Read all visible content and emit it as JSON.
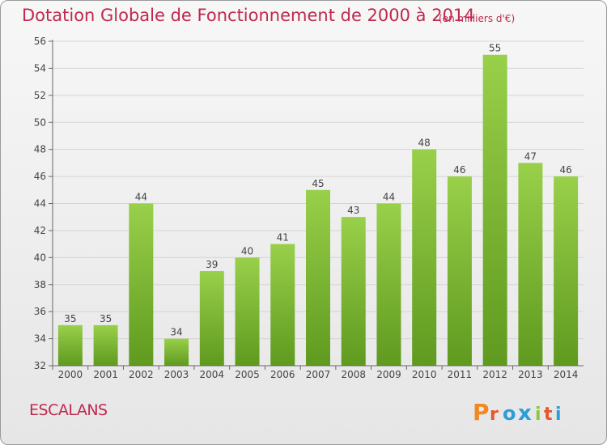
{
  "title": "Dotation Globale de Fonctionnement de 2000 à 2014",
  "unit": "(en milliers d'€)",
  "commune": "ESCALANS",
  "logo": {
    "text": "Proxiti",
    "letters": [
      "P",
      "r",
      "o",
      "x",
      "i",
      "t",
      "i"
    ],
    "colors": [
      "#f08a1e",
      "#e6552b",
      "#2a9ed8",
      "#2a9ed8",
      "#8cc63f",
      "#e6552b",
      "#2a9ed8"
    ]
  },
  "colors": {
    "bar_top": "#99d04a",
    "bar_bottom": "#5f9a1f",
    "title": "#c0284f",
    "grid": "#d4d4d4"
  },
  "chart_data": {
    "type": "bar",
    "title": "Dotation Globale de Fonctionnement de 2000 à 2014",
    "categories": [
      "2000",
      "2001",
      "2002",
      "2003",
      "2004",
      "2005",
      "2006",
      "2007",
      "2008",
      "2009",
      "2010",
      "2011",
      "2012",
      "2013",
      "2014"
    ],
    "values": [
      35,
      35,
      44,
      34,
      39,
      40,
      41,
      45,
      43,
      44,
      48,
      46,
      55,
      47,
      46
    ],
    "ylim": [
      32,
      56
    ],
    "yticks": [
      32,
      34,
      36,
      38,
      40,
      42,
      44,
      46,
      48,
      50,
      52,
      54,
      56
    ],
    "grid": true,
    "data_labels": true
  }
}
